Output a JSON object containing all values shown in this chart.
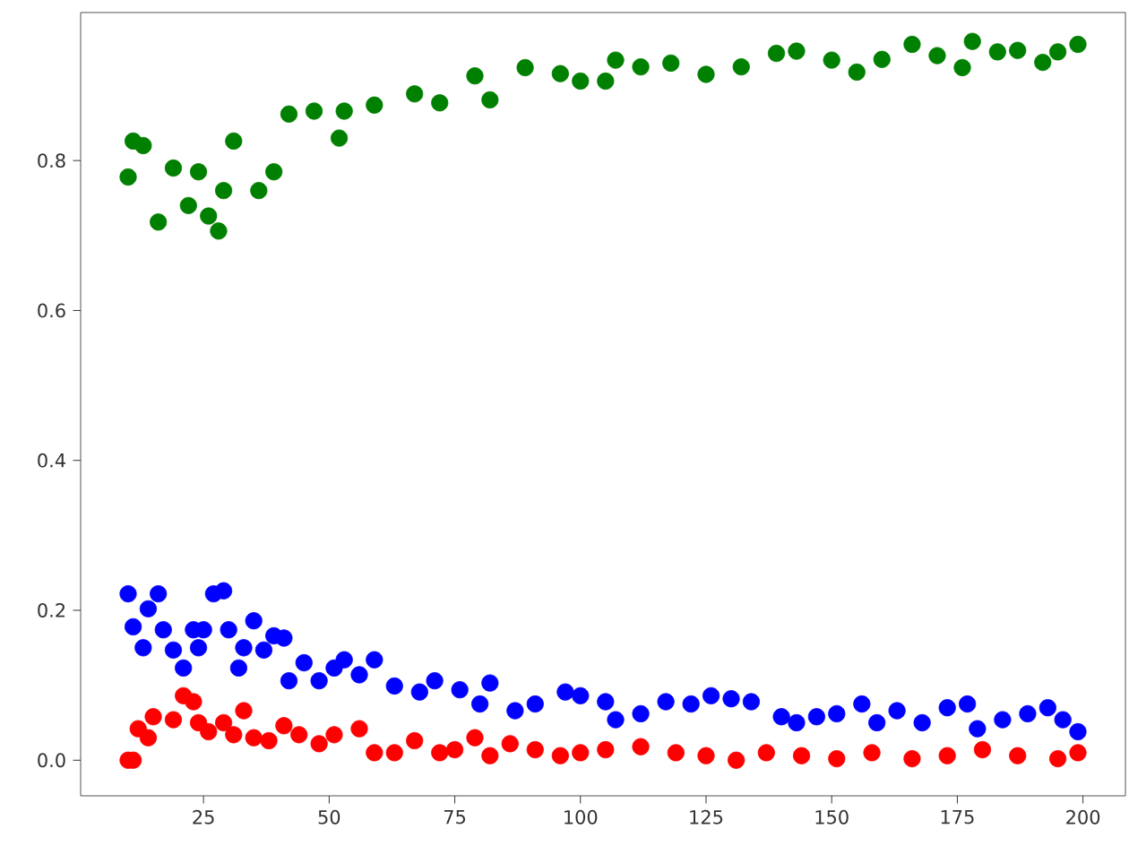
{
  "chart_data": {
    "type": "scatter",
    "marker": "circle",
    "grid": false,
    "xlim": [
      0.55,
      208.45
    ],
    "ylim": [
      -0.0475,
      0.9975
    ],
    "xticks": [
      25,
      50,
      75,
      100,
      125,
      150,
      175,
      200
    ],
    "yticks": [
      {
        "value": 0,
        "label": "0.0"
      },
      {
        "value": 0.2,
        "label": "0.2"
      },
      {
        "value": 0.4,
        "label": "0.4"
      },
      {
        "value": 0.6,
        "label": "0.6"
      },
      {
        "value": 0.8,
        "label": "0.8"
      }
    ],
    "series": [
      {
        "color": "#008000",
        "x": [
          10,
          11,
          13,
          16,
          19,
          22,
          24,
          26,
          28,
          29,
          31,
          36,
          39,
          42,
          47,
          52,
          53,
          59,
          67,
          72,
          79,
          82,
          89,
          96,
          100,
          105,
          107,
          112,
          118,
          125,
          132,
          139,
          143,
          150,
          155,
          160,
          166,
          171,
          176,
          178,
          183,
          187,
          192,
          195,
          199
        ],
        "values": [
          0.778,
          0.826,
          0.82,
          0.718,
          0.79,
          0.74,
          0.785,
          0.726,
          0.706,
          0.76,
          0.826,
          0.76,
          0.785,
          0.862,
          0.866,
          0.83,
          0.866,
          0.874,
          0.889,
          0.877,
          0.913,
          0.881,
          0.924,
          0.916,
          0.906,
          0.906,
          0.934,
          0.925,
          0.93,
          0.915,
          0.925,
          0.943,
          0.946,
          0.934,
          0.918,
          0.935,
          0.955,
          0.94,
          0.924,
          0.959,
          0.945,
          0.947,
          0.931,
          0.945,
          0.955
        ]
      },
      {
        "color": "#0000ff",
        "x": [
          10,
          11,
          13,
          14,
          16,
          17,
          19,
          21,
          23,
          24,
          25,
          27,
          29,
          30,
          32,
          33,
          35,
          37,
          39,
          41,
          42,
          45,
          48,
          51,
          53,
          56,
          59,
          63,
          68,
          71,
          76,
          80,
          82,
          87,
          91,
          97,
          100,
          105,
          107,
          112,
          117,
          122,
          126,
          130,
          134,
          140,
          143,
          147,
          151,
          156,
          159,
          163,
          168,
          173,
          177,
          179,
          184,
          189,
          193,
          196,
          199
        ],
        "values": [
          0.222,
          0.178,
          0.15,
          0.202,
          0.222,
          0.174,
          0.147,
          0.123,
          0.174,
          0.15,
          0.174,
          0.222,
          0.226,
          0.174,
          0.123,
          0.15,
          0.186,
          0.147,
          0.166,
          0.163,
          0.106,
          0.13,
          0.106,
          0.123,
          0.134,
          0.114,
          0.134,
          0.099,
          0.091,
          0.106,
          0.094,
          0.075,
          0.103,
          0.066,
          0.075,
          0.091,
          0.086,
          0.078,
          0.054,
          0.062,
          0.078,
          0.075,
          0.086,
          0.082,
          0.078,
          0.058,
          0.05,
          0.058,
          0.062,
          0.075,
          0.05,
          0.066,
          0.05,
          0.07,
          0.075,
          0.042,
          0.054,
          0.062,
          0.07,
          0.054,
          0.038
        ]
      },
      {
        "color": "#ff0000",
        "x": [
          10,
          11,
          12,
          14,
          15,
          19,
          21,
          23,
          24,
          26,
          29,
          31,
          33,
          35,
          38,
          41,
          44,
          48,
          51,
          56,
          59,
          63,
          67,
          72,
          75,
          79,
          82,
          86,
          91,
          96,
          100,
          105,
          112,
          119,
          125,
          131,
          137,
          144,
          151,
          158,
          166,
          173,
          180,
          187,
          195,
          199
        ],
        "values": [
          0.0,
          0.0,
          0.042,
          0.03,
          0.058,
          0.054,
          0.086,
          0.078,
          0.05,
          0.038,
          0.05,
          0.034,
          0.066,
          0.03,
          0.026,
          0.046,
          0.034,
          0.022,
          0.034,
          0.042,
          0.01,
          0.01,
          0.026,
          0.01,
          0.014,
          0.03,
          0.006,
          0.022,
          0.014,
          0.006,
          0.01,
          0.014,
          0.018,
          0.01,
          0.006,
          0.0,
          0.01,
          0.006,
          0.002,
          0.01,
          0.002,
          0.006,
          0.014,
          0.006,
          0.002,
          0.01
        ]
      }
    ]
  }
}
